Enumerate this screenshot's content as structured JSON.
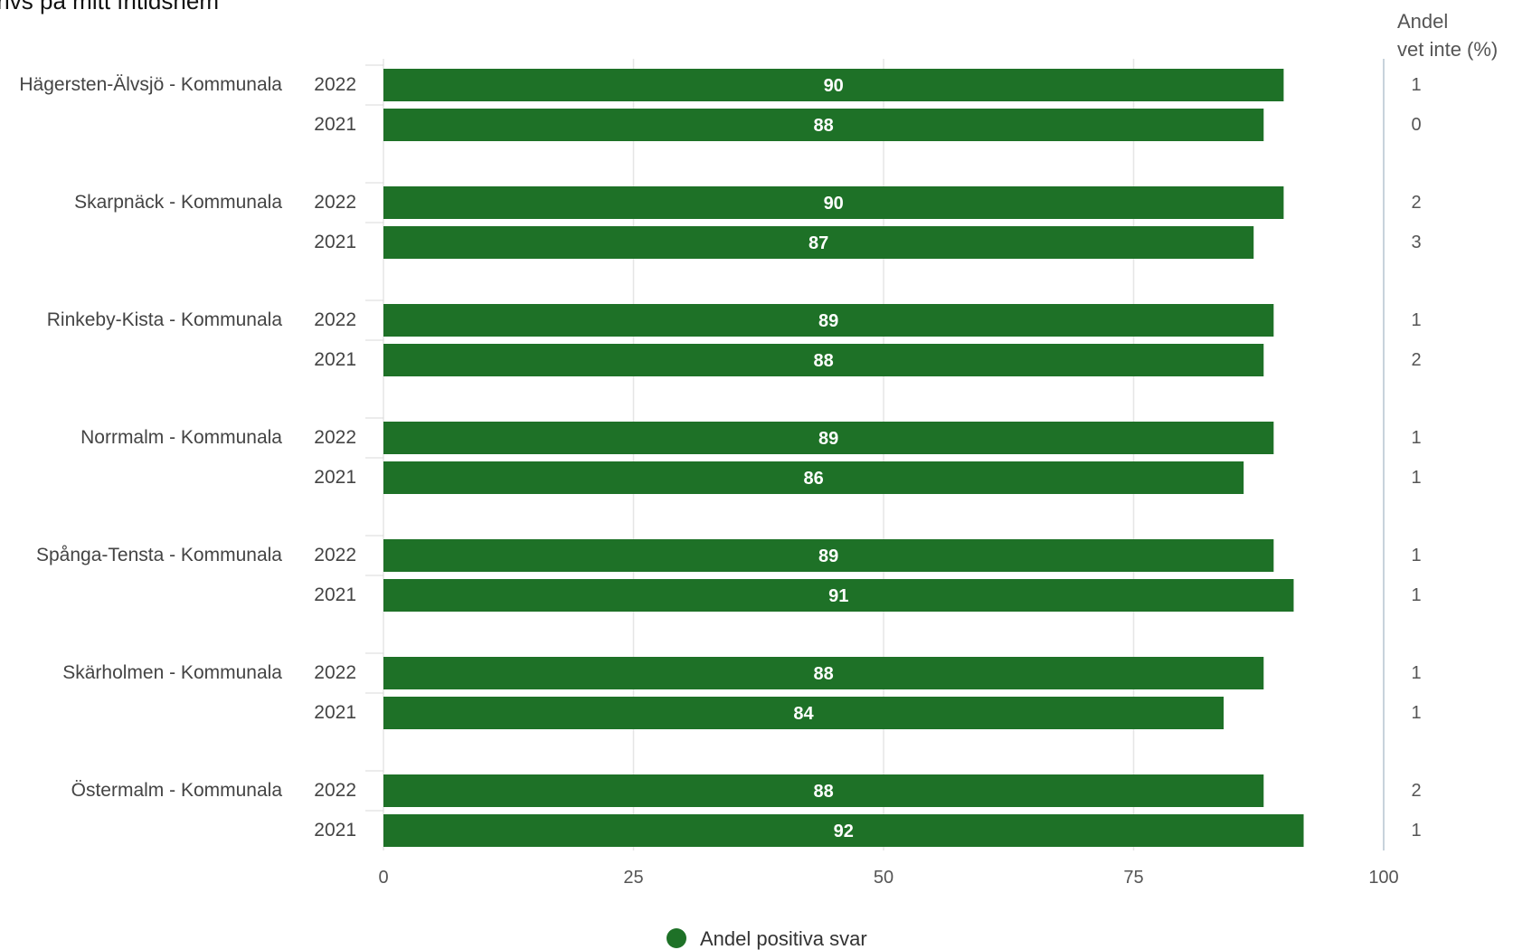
{
  "chart_data": {
    "type": "bar",
    "orientation": "horizontal",
    "title": "Jag trivs på mitt fritidshem",
    "xlim": [
      0,
      100
    ],
    "x_ticks": [
      0,
      25,
      50,
      75,
      100
    ],
    "grid": true,
    "legend": {
      "position": "bottom-center",
      "label": "Andel positiva svar",
      "color": "#1e7127"
    },
    "right_column_header": [
      "Andel",
      "vet inte (%)"
    ],
    "groups": [
      {
        "name": "Hägersten-Älvsjö  - Kommunala",
        "rows": [
          {
            "year": "2022",
            "value": 90,
            "vet_inte": 1
          },
          {
            "year": "2021",
            "value": 88,
            "vet_inte": 0
          }
        ]
      },
      {
        "name": "Skarpnäck - Kommunala",
        "rows": [
          {
            "year": "2022",
            "value": 90,
            "vet_inte": 2
          },
          {
            "year": "2021",
            "value": 87,
            "vet_inte": 3
          }
        ]
      },
      {
        "name": "Rinkeby-Kista - Kommunala",
        "rows": [
          {
            "year": "2022",
            "value": 89,
            "vet_inte": 1
          },
          {
            "year": "2021",
            "value": 88,
            "vet_inte": 2
          }
        ]
      },
      {
        "name": "Norrmalm - Kommunala",
        "rows": [
          {
            "year": "2022",
            "value": 89,
            "vet_inte": 1
          },
          {
            "year": "2021",
            "value": 86,
            "vet_inte": 1
          }
        ]
      },
      {
        "name": "Spånga-Tensta  - Kommunala",
        "rows": [
          {
            "year": "2022",
            "value": 89,
            "vet_inte": 1
          },
          {
            "year": "2021",
            "value": 91,
            "vet_inte": 1
          }
        ]
      },
      {
        "name": "Skärholmen - Kommunala",
        "rows": [
          {
            "year": "2022",
            "value": 88,
            "vet_inte": 1
          },
          {
            "year": "2021",
            "value": 84,
            "vet_inte": 1
          }
        ]
      },
      {
        "name": "Östermalm - Kommunala",
        "rows": [
          {
            "year": "2022",
            "value": 88,
            "vet_inte": 2
          },
          {
            "year": "2021",
            "value": 92,
            "vet_inte": 1
          }
        ]
      }
    ]
  }
}
